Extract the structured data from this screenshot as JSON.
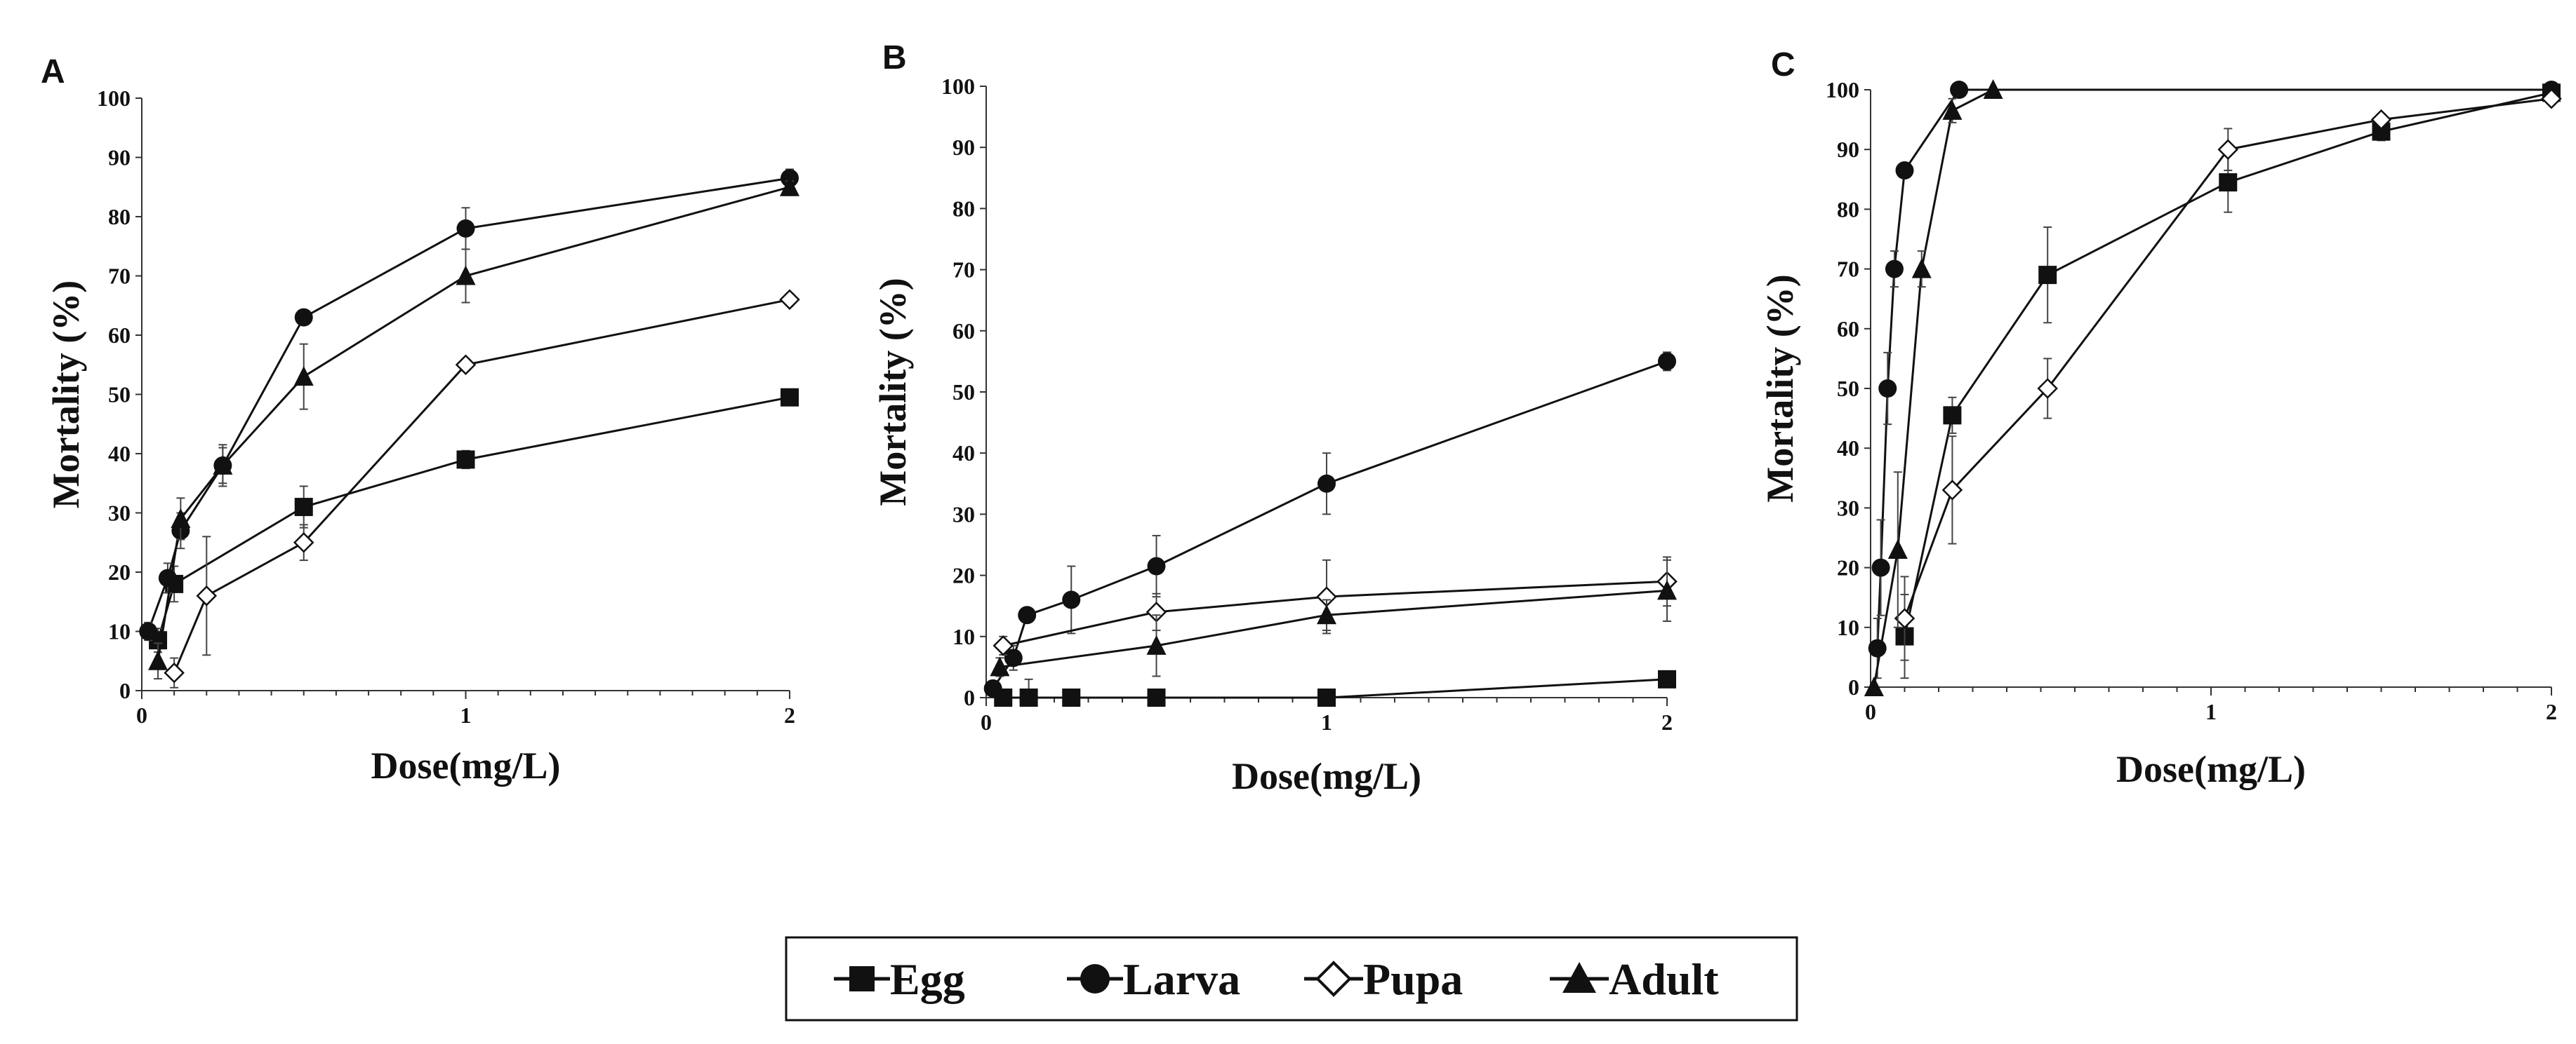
{
  "chart_data": [
    {
      "panel": "A",
      "type": "line",
      "xlabel": "Dose(mg/L)",
      "ylabel": "Mortality (%)",
      "xlim": [
        0,
        2
      ],
      "ylim": [
        0,
        100
      ],
      "xticks": [
        0,
        1,
        2
      ],
      "yticks": [
        0,
        10,
        20,
        30,
        40,
        50,
        60,
        70,
        80,
        90,
        100
      ],
      "series": [
        {
          "name": "Egg",
          "x": [
            0.05,
            0.1,
            0.5,
            1,
            2
          ],
          "y": [
            8.5,
            18,
            31,
            39,
            49.5
          ],
          "err": [
            2,
            3,
            3.5,
            1.5,
            1
          ]
        },
        {
          "name": "Larva",
          "x": [
            0.02,
            0.08,
            0.12,
            0.25,
            0.5,
            1,
            2
          ],
          "y": [
            10,
            19,
            27,
            38,
            63,
            78,
            86.5
          ],
          "err": [
            1.5,
            2.5,
            3,
            3,
            1,
            3.5,
            1.5
          ]
        },
        {
          "name": "Pupa",
          "x": [
            0.1,
            0.2,
            0.5,
            1,
            2
          ],
          "y": [
            3,
            16,
            25,
            55,
            66
          ],
          "err": [
            2.5,
            10,
            3,
            1,
            1
          ]
        },
        {
          "name": "Adult",
          "x": [
            0.05,
            0.12,
            0.25,
            0.5,
            1,
            2
          ],
          "y": [
            5,
            29,
            38,
            53,
            70,
            85
          ],
          "err": [
            3,
            3.5,
            3.5,
            5.5,
            4.5,
            1
          ]
        }
      ]
    },
    {
      "panel": "B",
      "type": "line",
      "xlabel": "Dose(mg/L)",
      "ylabel": "Mortality (%)",
      "xlim": [
        0,
        2
      ],
      "ylim": [
        0,
        100
      ],
      "xticks": [
        0,
        1,
        2
      ],
      "yticks": [
        0,
        10,
        20,
        30,
        40,
        50,
        60,
        70,
        80,
        90,
        100
      ],
      "series": [
        {
          "name": "Egg",
          "x": [
            0.05,
            0.125,
            0.25,
            0.5,
            1,
            2
          ],
          "y": [
            0,
            0,
            0,
            0,
            0,
            3
          ],
          "err": [
            0,
            3,
            0,
            0,
            0,
            1
          ]
        },
        {
          "name": "Larva",
          "x": [
            0.02,
            0.08,
            0.12,
            0.25,
            0.5,
            1,
            2
          ],
          "y": [
            1.5,
            6.5,
            13.5,
            16,
            21.5,
            35,
            55
          ],
          "err": [
            1,
            2,
            1,
            5.5,
            5,
            5,
            1.5
          ]
        },
        {
          "name": "Pupa",
          "x": [
            0.05,
            0.5,
            1,
            2
          ],
          "y": [
            8.5,
            14,
            16.5,
            19
          ],
          "err": [
            1.5,
            3,
            6,
            4
          ]
        },
        {
          "name": "Adult",
          "x": [
            0.04,
            0.5,
            1,
            2
          ],
          "y": [
            5,
            8.5,
            13.5,
            17.5
          ],
          "err": [
            1.5,
            5,
            2.5,
            5
          ]
        }
      ]
    },
    {
      "panel": "C",
      "type": "line",
      "xlabel": "Dose(mg/L)",
      "ylabel": "Mortality (%)",
      "xlim": [
        0,
        2
      ],
      "ylim": [
        0,
        100
      ],
      "xticks": [
        0,
        1,
        2
      ],
      "yticks": [
        0,
        10,
        20,
        30,
        40,
        50,
        60,
        70,
        80,
        90,
        100
      ],
      "series": [
        {
          "name": "Egg",
          "x": [
            0.1,
            0.24,
            0.52,
            1.05,
            1.5,
            2
          ],
          "y": [
            8.5,
            45.5,
            69,
            84.5,
            93,
            99.5
          ],
          "err": [
            7,
            3,
            8,
            5,
            1.5,
            0.5
          ]
        },
        {
          "name": "Larva",
          "x": [
            0.02,
            0.03,
            0.05,
            0.07,
            0.1,
            0.26,
            2
          ],
          "y": [
            6.5,
            20,
            50,
            70,
            86.5,
            100,
            100
          ],
          "err": [
            5,
            8,
            6,
            3,
            0,
            0,
            0
          ]
        },
        {
          "name": "Pupa",
          "x": [
            0.1,
            0.24,
            0.52,
            1.05,
            1.5,
            2
          ],
          "y": [
            11.5,
            33,
            50,
            90,
            95,
            98.5
          ],
          "err": [
            7,
            9,
            5,
            3.5,
            1,
            0.5
          ]
        },
        {
          "name": "Adult",
          "x": [
            0.01,
            0.08,
            0.15,
            0.24,
            0.36
          ],
          "y": [
            0,
            23,
            70,
            96.5,
            100
          ],
          "err": [
            0,
            13,
            3,
            2,
            0
          ]
        }
      ]
    }
  ],
  "legend": {
    "items": [
      {
        "label": "Egg",
        "marker": "square-filled"
      },
      {
        "label": "Larva",
        "marker": "circle-filled"
      },
      {
        "label": "Pupa",
        "marker": "diamond-open"
      },
      {
        "label": "Adult",
        "marker": "triangle-filled"
      }
    ]
  },
  "colors": {
    "ink": "#111111",
    "axis": "#333333",
    "background": "#ffffff"
  }
}
